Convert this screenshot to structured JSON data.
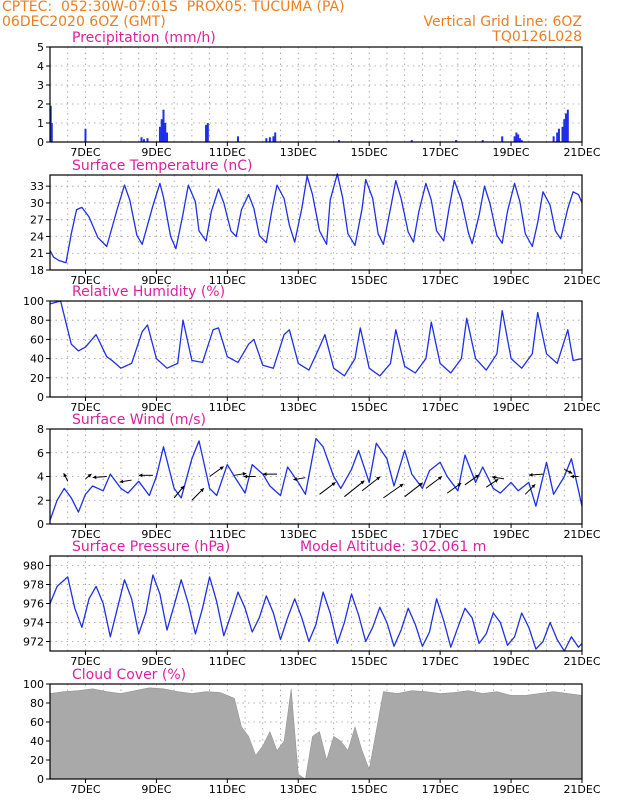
{
  "header": {
    "line1": "CPTEC:  052:30W-07:01S  PROX05: TUCUMA (PA)",
    "line2_left": "06DEC2020 6OZ (GMT)",
    "line2_right": "Vertical Grid Line: 6OZ",
    "line3_right": "TQ0126L028"
  },
  "colors": {
    "header": "#ee7d22",
    "title": "#dd1fa0",
    "series": "#1f2fe8",
    "cloud": "#a9a9a9",
    "grid": "#9a9a9a"
  },
  "chart_data": [
    {
      "type": "bar",
      "id": "precip",
      "title": "Precipitation  (mm/h)",
      "ylim": [
        0,
        5
      ],
      "yticks": [
        0,
        1,
        2,
        3,
        4,
        5
      ],
      "xlim": [
        6,
        21
      ],
      "xticks": [
        "7DEC",
        "9DEC",
        "11DEC",
        "13DEC",
        "15DEC",
        "17DEC",
        "19DEC",
        "21DEC"
      ],
      "x": [
        6.02,
        6.05,
        7.0,
        8.58,
        8.65,
        8.75,
        9.1,
        9.15,
        9.2,
        9.25,
        9.3,
        10.4,
        10.45,
        11.3,
        12.1,
        12.2,
        12.3,
        12.35,
        14.15,
        16.2,
        17.45,
        18.2,
        18.75,
        19.1,
        19.15,
        19.2,
        19.25,
        19.3,
        20.2,
        20.3,
        20.35,
        20.45,
        20.5,
        20.55,
        20.6
      ],
      "values": [
        1.9,
        1.0,
        0.7,
        0.25,
        0.15,
        0.2,
        0.8,
        1.2,
        1.7,
        1.0,
        0.5,
        0.9,
        1.0,
        0.3,
        0.2,
        0.25,
        0.3,
        0.5,
        0.1,
        0.1,
        0.1,
        0.1,
        0.3,
        0.3,
        0.5,
        0.4,
        0.2,
        0.1,
        0.3,
        0.5,
        0.7,
        0.8,
        1.2,
        1.5,
        1.7
      ]
    },
    {
      "type": "line",
      "id": "temp",
      "title": "Surface Temperature (nC)",
      "ylim": [
        18,
        35
      ],
      "yticks": [
        18,
        21,
        24,
        27,
        30,
        33
      ],
      "xlim": [
        6,
        21
      ],
      "xticks": [
        "7DEC",
        "9DEC",
        "11DEC",
        "13DEC",
        "15DEC",
        "17DEC",
        "19DEC",
        "21DEC"
      ],
      "x": [
        6.0,
        6.1,
        6.25,
        6.45,
        6.6,
        6.75,
        6.9,
        7.1,
        7.35,
        7.6,
        7.9,
        8.1,
        8.25,
        8.45,
        8.6,
        8.9,
        9.1,
        9.2,
        9.4,
        9.55,
        9.75,
        9.9,
        10.1,
        10.2,
        10.4,
        10.55,
        10.75,
        10.9,
        11.1,
        11.25,
        11.4,
        11.6,
        11.75,
        11.9,
        12.1,
        12.25,
        12.4,
        12.6,
        12.75,
        12.9,
        13.1,
        13.25,
        13.4,
        13.6,
        13.8,
        13.9,
        14.1,
        14.25,
        14.4,
        14.6,
        14.8,
        14.9,
        15.1,
        15.25,
        15.4,
        15.6,
        15.75,
        15.9,
        16.1,
        16.25,
        16.4,
        16.6,
        16.75,
        16.9,
        17.1,
        17.25,
        17.4,
        17.6,
        17.8,
        17.9,
        18.1,
        18.25,
        18.4,
        18.6,
        18.75,
        18.9,
        19.1,
        19.25,
        19.4,
        19.6,
        19.75,
        19.9,
        20.1,
        20.25,
        20.4,
        20.6,
        20.75,
        20.9,
        21.0
      ],
      "values": [
        21.5,
        20.3,
        19.7,
        19.3,
        24.5,
        28.8,
        29.2,
        27.5,
        23.8,
        22.2,
        29.0,
        33.2,
        30.5,
        24.2,
        22.6,
        29.5,
        33.5,
        31.0,
        24.0,
        21.8,
        28.0,
        33.2,
        30.2,
        25.0,
        23.2,
        28.5,
        32.5,
        30.0,
        25.0,
        24.0,
        28.8,
        31.5,
        29.0,
        24.2,
        22.9,
        28.5,
        33.2,
        30.8,
        26.0,
        23.0,
        29.0,
        34.8,
        31.5,
        25.0,
        22.6,
        30.5,
        35.2,
        31.0,
        24.5,
        22.4,
        29.0,
        34.2,
        30.8,
        24.5,
        22.6,
        29.0,
        34.0,
        30.8,
        24.8,
        23.0,
        28.5,
        33.5,
        30.5,
        25.0,
        23.2,
        29.0,
        34.0,
        30.5,
        24.6,
        22.7,
        27.8,
        33.0,
        30.0,
        24.2,
        22.8,
        28.5,
        33.5,
        30.2,
        24.5,
        22.2,
        26.5,
        32.0,
        29.6,
        25.0,
        23.6,
        29.0,
        32.0,
        31.5,
        30.0
      ]
    },
    {
      "type": "line",
      "id": "rh",
      "title": "Relative Humidity  (%)",
      "ylim": [
        0,
        100
      ],
      "yticks": [
        0,
        20,
        40,
        60,
        80,
        100
      ],
      "xlim": [
        6,
        21
      ],
      "xticks": [
        "7DEC",
        "9DEC",
        "11DEC",
        "13DEC",
        "15DEC",
        "17DEC",
        "19DEC",
        "21DEC"
      ],
      "x": [
        6.0,
        6.3,
        6.6,
        6.8,
        7.0,
        7.3,
        7.6,
        7.75,
        8.0,
        8.3,
        8.6,
        8.75,
        9.0,
        9.3,
        9.6,
        9.75,
        10.0,
        10.3,
        10.6,
        10.75,
        11.0,
        11.3,
        11.6,
        11.75,
        12.0,
        12.3,
        12.6,
        12.75,
        13.0,
        13.3,
        13.6,
        13.75,
        14.0,
        14.3,
        14.6,
        14.75,
        15.0,
        15.3,
        15.6,
        15.75,
        16.0,
        16.3,
        16.6,
        16.75,
        17.0,
        17.3,
        17.6,
        17.75,
        18.0,
        18.3,
        18.6,
        18.75,
        19.0,
        19.3,
        19.6,
        19.75,
        20.0,
        20.3,
        20.6,
        20.75,
        21.0
      ],
      "values": [
        97,
        100,
        55,
        48,
        52,
        65,
        42,
        38,
        30,
        35,
        68,
        75,
        40,
        30,
        35,
        80,
        38,
        36,
        70,
        72,
        42,
        36,
        55,
        60,
        33,
        30,
        65,
        70,
        35,
        28,
        52,
        65,
        30,
        22,
        40,
        72,
        30,
        22,
        35,
        70,
        32,
        25,
        40,
        78,
        35,
        25,
        40,
        82,
        40,
        28,
        45,
        90,
        40,
        30,
        45,
        88,
        45,
        35,
        70,
        38,
        40
      ]
    },
    {
      "type": "line",
      "id": "wind",
      "title": "Surface Wind  (m/s)",
      "ylim": [
        0,
        8
      ],
      "yticks": [
        0,
        2,
        4,
        6,
        8
      ],
      "xlim": [
        6,
        21
      ],
      "xticks": [
        "7DEC",
        "9DEC",
        "11DEC",
        "13DEC",
        "15DEC",
        "17DEC",
        "19DEC",
        "21DEC"
      ],
      "x": [
        6.0,
        6.2,
        6.4,
        6.6,
        6.8,
        7.0,
        7.2,
        7.5,
        7.7,
        8.0,
        8.2,
        8.5,
        8.8,
        9.0,
        9.2,
        9.5,
        9.7,
        10.0,
        10.2,
        10.5,
        10.7,
        11.0,
        11.2,
        11.5,
        11.7,
        12.0,
        12.2,
        12.5,
        12.7,
        13.0,
        13.2,
        13.5,
        13.7,
        14.0,
        14.2,
        14.5,
        14.7,
        15.0,
        15.2,
        15.5,
        15.7,
        16.0,
        16.2,
        16.5,
        16.7,
        17.0,
        17.2,
        17.5,
        17.7,
        18.0,
        18.2,
        18.5,
        18.7,
        19.0,
        19.2,
        19.5,
        19.7,
        20.0,
        20.2,
        20.5,
        20.7,
        21.0
      ],
      "values": [
        0.3,
        2.0,
        3.0,
        2.2,
        1.0,
        2.5,
        3.2,
        2.8,
        4.2,
        3.0,
        2.6,
        3.6,
        2.4,
        4.0,
        6.5,
        3.0,
        2.2,
        5.5,
        7.0,
        3.0,
        2.4,
        5.0,
        4.0,
        2.6,
        5.0,
        4.2,
        3.2,
        2.4,
        4.8,
        3.5,
        2.5,
        7.2,
        6.5,
        4.0,
        3.0,
        4.6,
        6.2,
        3.5,
        6.8,
        5.5,
        3.2,
        6.2,
        4.2,
        3.0,
        4.5,
        5.2,
        4.0,
        2.8,
        5.8,
        3.5,
        4.8,
        3.0,
        2.6,
        3.5,
        2.8,
        3.5,
        1.5,
        5.2,
        2.5,
        4.0,
        5.5,
        1.5
      ]
    },
    {
      "type": "line",
      "id": "pres",
      "title": "Surface Pressure (hPa)",
      "annotation": "Model Altitude: 302.061  m",
      "ylim": [
        971,
        981
      ],
      "yticks": [
        972,
        974,
        976,
        978,
        980
      ],
      "xlim": [
        6,
        21
      ],
      "xticks": [
        "7DEC",
        "9DEC",
        "11DEC",
        "13DEC",
        "15DEC",
        "17DEC",
        "19DEC",
        "21DEC"
      ],
      "x": [
        6.0,
        6.2,
        6.5,
        6.7,
        6.9,
        7.1,
        7.3,
        7.5,
        7.7,
        7.9,
        8.1,
        8.3,
        8.5,
        8.7,
        8.9,
        9.1,
        9.3,
        9.5,
        9.7,
        9.9,
        10.1,
        10.3,
        10.5,
        10.7,
        10.9,
        11.1,
        11.3,
        11.5,
        11.7,
        11.9,
        12.1,
        12.3,
        12.5,
        12.7,
        12.9,
        13.1,
        13.3,
        13.5,
        13.7,
        13.9,
        14.1,
        14.3,
        14.5,
        14.7,
        14.9,
        15.1,
        15.3,
        15.5,
        15.7,
        15.9,
        16.1,
        16.3,
        16.5,
        16.7,
        16.9,
        17.1,
        17.3,
        17.5,
        17.7,
        17.9,
        18.1,
        18.3,
        18.5,
        18.7,
        18.9,
        19.1,
        19.3,
        19.5,
        19.7,
        19.9,
        20.1,
        20.3,
        20.5,
        20.7,
        20.9,
        21.0
      ],
      "values": [
        976.0,
        977.8,
        978.8,
        975.5,
        973.5,
        976.5,
        977.8,
        976.0,
        972.5,
        975.5,
        978.5,
        976.5,
        972.8,
        975.0,
        979.0,
        977.0,
        973.2,
        975.8,
        978.5,
        976.0,
        972.8,
        975.5,
        978.8,
        976.2,
        972.6,
        974.8,
        977.2,
        975.5,
        973.0,
        974.5,
        976.8,
        975.0,
        972.2,
        974.5,
        976.5,
        974.5,
        972.0,
        973.8,
        977.2,
        975.0,
        971.8,
        974.0,
        977.0,
        974.8,
        972.0,
        973.5,
        975.6,
        974.0,
        971.5,
        973.2,
        975.5,
        973.8,
        971.5,
        973.0,
        976.5,
        974.2,
        971.4,
        973.5,
        975.5,
        974.5,
        971.8,
        972.8,
        975.0,
        974.0,
        971.6,
        972.5,
        975.0,
        973.5,
        971.2,
        972.0,
        974.0,
        972.2,
        971.0,
        972.5,
        971.4,
        971.8
      ]
    },
    {
      "type": "bar",
      "id": "cloud",
      "title": "Cloud Cover (%)",
      "ylim": [
        0,
        100
      ],
      "yticks": [
        0,
        20,
        40,
        60,
        80,
        100
      ],
      "xlim": [
        6,
        21
      ],
      "xticks": [
        "7DEC",
        "9DEC",
        "11DEC",
        "13DEC",
        "15DEC",
        "17DEC",
        "19DEC",
        "21DEC"
      ],
      "x": [
        6.0,
        6.4,
        6.8,
        7.2,
        7.6,
        8.0,
        8.4,
        8.8,
        9.2,
        9.6,
        10.0,
        10.4,
        10.8,
        11.2,
        11.4,
        11.6,
        11.8,
        12.0,
        12.2,
        12.4,
        12.6,
        12.8,
        13.0,
        13.2,
        13.4,
        13.6,
        13.8,
        14.0,
        14.2,
        14.4,
        14.6,
        14.8,
        15.0,
        15.4,
        15.8,
        16.2,
        16.6,
        17.0,
        17.4,
        17.8,
        18.2,
        18.6,
        19.0,
        19.4,
        19.8,
        20.2,
        20.6,
        21.0
      ],
      "values": [
        90,
        92,
        93,
        95,
        92,
        90,
        93,
        96,
        95,
        92,
        90,
        92,
        91,
        85,
        55,
        45,
        25,
        35,
        50,
        30,
        40,
        95,
        5,
        0,
        45,
        50,
        20,
        45,
        40,
        30,
        55,
        30,
        10,
        92,
        90,
        93,
        92,
        90,
        91,
        93,
        90,
        92,
        88,
        88,
        90,
        92,
        90,
        88
      ]
    }
  ]
}
